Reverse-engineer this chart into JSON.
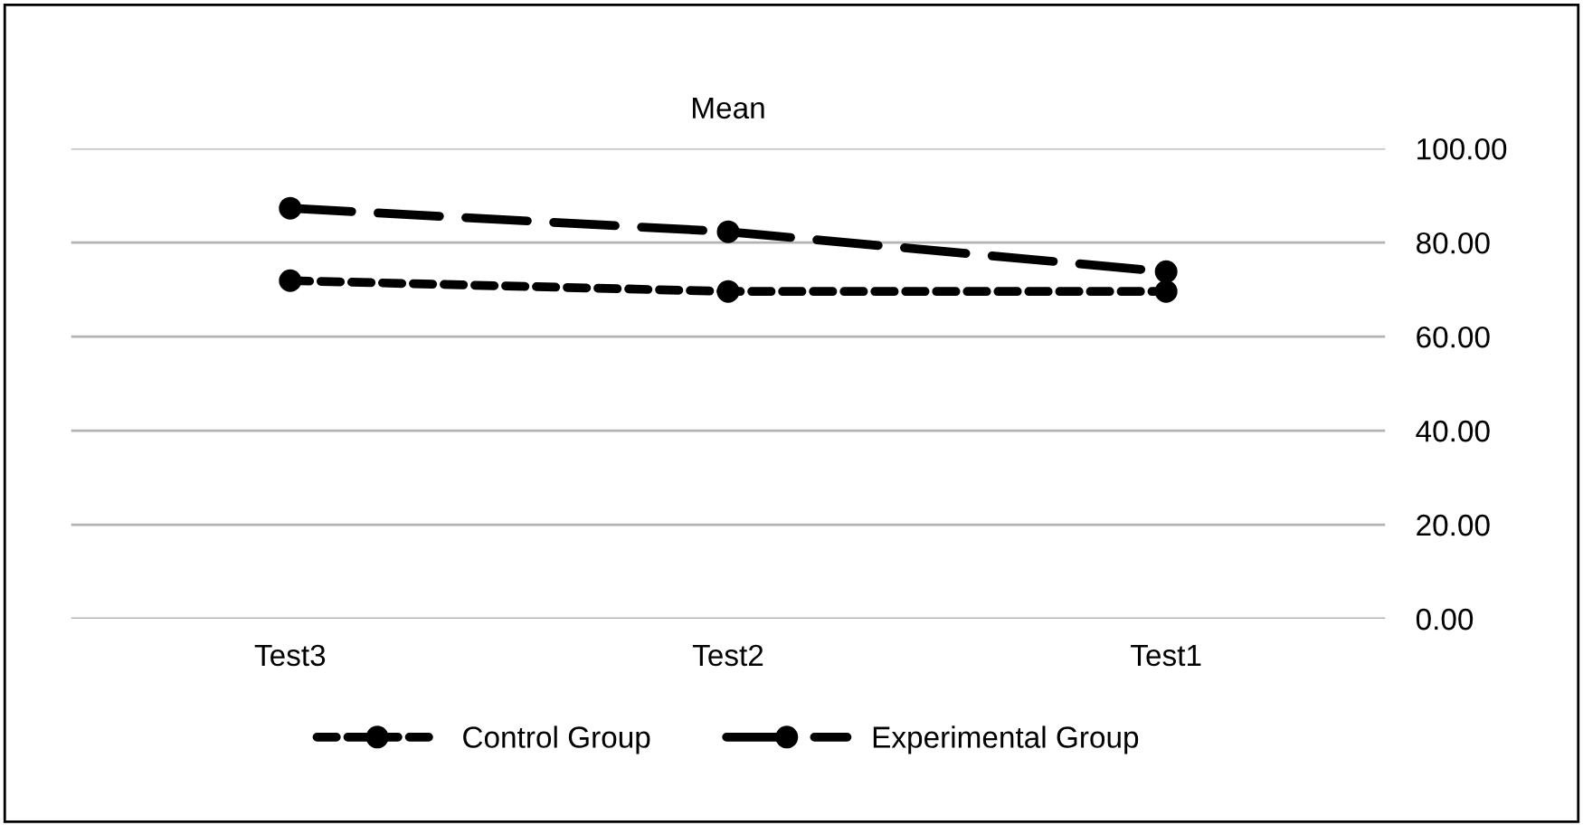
{
  "chart_data": {
    "type": "line",
    "title": "Mean",
    "categories": [
      "Test3",
      "Test2",
      "Test1"
    ],
    "series": [
      {
        "name": "Control Group",
        "color": "#000000",
        "values": [
          71.9,
          69.6,
          69.6
        ],
        "line_style": "dotted"
      },
      {
        "name": "Experimental Group",
        "color": "#000000",
        "values": [
          87.3,
          82.3,
          73.8
        ],
        "line_style": "dashed"
      }
    ],
    "ylim": [
      0,
      100
    ],
    "yticks": [
      {
        "value": 0,
        "label": "0.00"
      },
      {
        "value": 20,
        "label": "20.00"
      },
      {
        "value": 40,
        "label": "40.00"
      },
      {
        "value": 60,
        "label": "60.00"
      },
      {
        "value": 80,
        "label": "80.00"
      },
      {
        "value": 100,
        "label": "100.00"
      }
    ],
    "grid": "y",
    "legend": "bottom",
    "marker": "circle"
  }
}
